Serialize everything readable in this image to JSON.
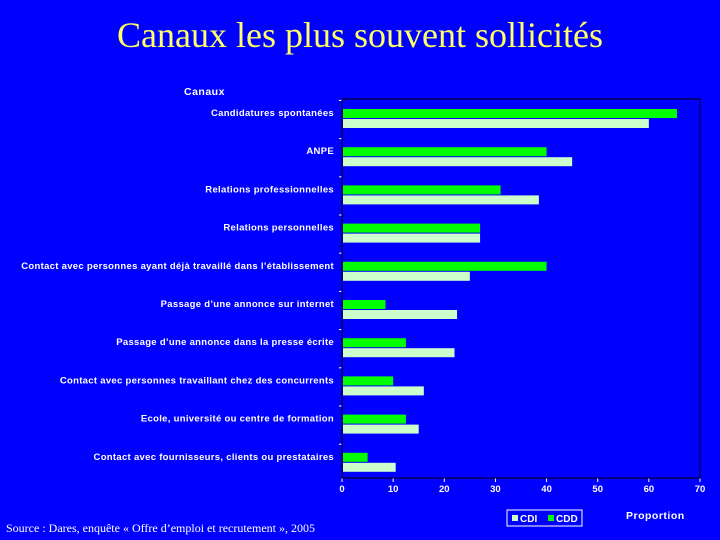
{
  "title": "Canaux les plus souvent sollicités",
  "source": "Source : Dares, enquête « Offre d’emploi et recrutement », 2005",
  "colors": {
    "background": "#0000FF",
    "title": "#FFFF66",
    "text": "#FFFFFF",
    "cdd": "#00FF00",
    "cdi": "#CCFFCC",
    "axis": "#FFFFFF"
  },
  "chart_data": {
    "type": "bar",
    "orientation": "horizontal",
    "ylabel": "Canaux",
    "xlabel": "Proportion",
    "xlim": [
      0,
      70
    ],
    "xticks": [
      "0",
      "10",
      "20",
      "30",
      "40",
      "50",
      "60",
      "70"
    ],
    "categories": [
      "Candidatures spontanées",
      "ANPE",
      "Relations professionnelles",
      "Relations personnelles",
      "Contact avec personnes ayant déjà travaillé dans l’établissement",
      "Passage d’une annonce sur internet",
      "Passage d’une annonce dans la presse écrite",
      "Contact avec personnes travaillant chez des concurrents",
      "Ecole, université ou centre de formation",
      "Contact avec fournisseurs, clients ou prestataires"
    ],
    "series": [
      {
        "name": "CDD",
        "color": "#00FF00",
        "values": [
          65.5,
          40,
          31,
          27,
          40,
          8.5,
          12.5,
          10,
          12.5,
          5
        ]
      },
      {
        "name": "CDI",
        "color": "#CCFFCC",
        "values": [
          60,
          45,
          38.5,
          27,
          25,
          22.5,
          22,
          16,
          15,
          10.5
        ]
      }
    ],
    "legend": [
      "CDI",
      "CDD"
    ],
    "legend_position": "bottom-right",
    "grid": false
  }
}
